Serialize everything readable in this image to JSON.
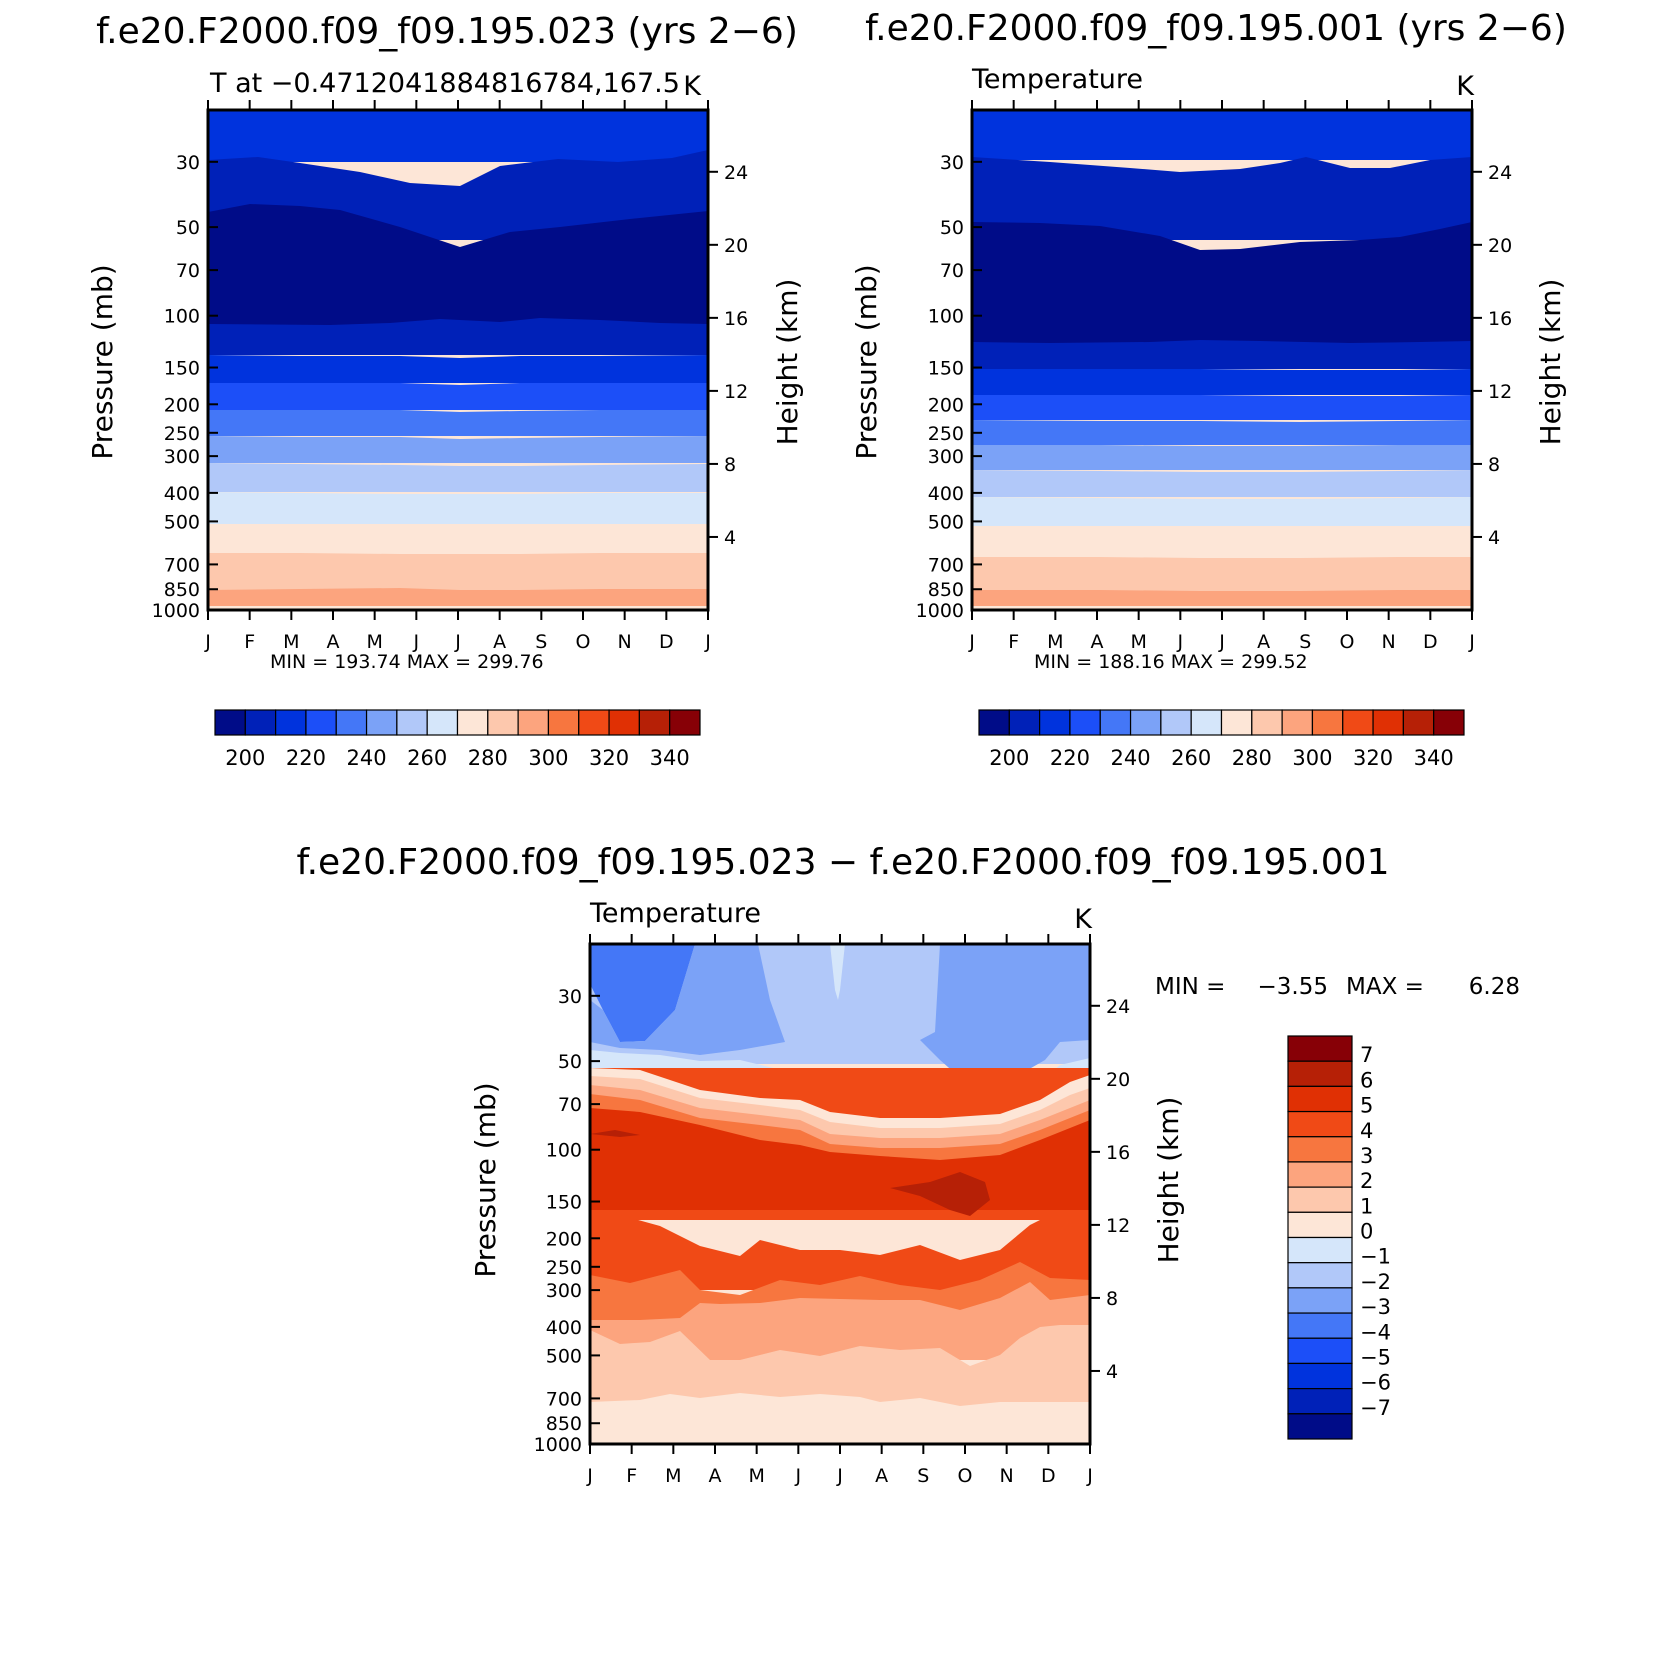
{
  "figure": {
    "panel_top_left": {
      "title": "f.e20.F2000.f09_f09.195.023 (yrs 2−6)",
      "left_string": "T at −0.4712041884816784,167.5",
      "right_string": "K",
      "min_max": "MIN =  193.74  MAX =  299.76"
    },
    "panel_top_right": {
      "title": "f.e20.F2000.f09_f09.195.001 (yrs 2−6)",
      "left_string": "Temperature",
      "right_string": "K",
      "min_max": "MIN =  188.16  MAX =  299.52"
    },
    "panel_bottom": {
      "title": "f.e20.F2000.f09_f09.195.023 − f.e20.F2000.f09_f09.195.001",
      "left_string": "Temperature",
      "right_string": "K",
      "min_label": "MIN =",
      "min_value": "−3.55",
      "max_label": "MAX =",
      "max_value": "6.28"
    },
    "axis_labels": {
      "left": "Pressure (mb)",
      "right": "Height (km)"
    }
  },
  "chart_data": [
    {
      "type": "heatmap",
      "subtype": "filled-contour pressure-month cross-section",
      "title": "f.e20.F2000.f09_f09.195.023 (yrs 2−6)",
      "subtitle": "T at −0.4712041884816784,167.5",
      "units": "K",
      "ylabel": "Pressure (mb)",
      "y2label": "Height (km)",
      "x_ticks": [
        "J",
        "F",
        "M",
        "A",
        "M",
        "J",
        "J",
        "A",
        "S",
        "O",
        "N",
        "D",
        "J"
      ],
      "pressure_ticks": [
        30,
        50,
        70,
        100,
        150,
        200,
        250,
        300,
        400,
        500,
        700,
        850,
        1000
      ],
      "pressure_range": [
        20,
        1000
      ],
      "pressure_scale": "log",
      "height_ticks_km": [
        24,
        20,
        16,
        12,
        8,
        4
      ],
      "contour_levels": [
        200,
        210,
        220,
        230,
        240,
        250,
        260,
        270,
        280,
        290,
        300,
        310,
        320,
        330,
        340
      ],
      "colorbar_labels": [
        "200",
        "220",
        "240",
        "260",
        "280",
        "300",
        "320",
        "340"
      ],
      "colorbar_colors": [
        "#000c88",
        "#0021b8",
        "#0033dd",
        "#1c4ff8",
        "#4477f7",
        "#7ba2f7",
        "#b1c8f9",
        "#d5e6fa",
        "#fde6d7",
        "#fdc8ad",
        "#fca47e",
        "#f7763f",
        "#f04a16",
        "#e03004",
        "#b62006",
        "#870006"
      ],
      "min": 193.74,
      "max": 299.76
    },
    {
      "type": "heatmap",
      "subtype": "filled-contour pressure-month cross-section",
      "title": "f.e20.F2000.f09_f09.195.001 (yrs 2−6)",
      "subtitle": "Temperature",
      "units": "K",
      "ylabel": "Pressure (mb)",
      "y2label": "Height (km)",
      "x_ticks": [
        "J",
        "F",
        "M",
        "A",
        "M",
        "J",
        "J",
        "A",
        "S",
        "O",
        "N",
        "D",
        "J"
      ],
      "pressure_ticks": [
        30,
        50,
        70,
        100,
        150,
        200,
        250,
        300,
        400,
        500,
        700,
        850,
        1000
      ],
      "pressure_range": [
        20,
        1000
      ],
      "pressure_scale": "log",
      "height_ticks_km": [
        24,
        20,
        16,
        12,
        8,
        4
      ],
      "contour_levels": [
        200,
        210,
        220,
        230,
        240,
        250,
        260,
        270,
        280,
        290,
        300,
        310,
        320,
        330,
        340
      ],
      "colorbar_labels": [
        "200",
        "220",
        "240",
        "260",
        "280",
        "300",
        "320",
        "340"
      ],
      "colorbar_colors": [
        "#000c88",
        "#0021b8",
        "#0033dd",
        "#1c4ff8",
        "#4477f7",
        "#7ba2f7",
        "#b1c8f9",
        "#d5e6fa",
        "#fde6d7",
        "#fdc8ad",
        "#fca47e",
        "#f7763f",
        "#f04a16",
        "#e03004",
        "#b62006",
        "#870006"
      ],
      "min": 188.16,
      "max": 299.52
    },
    {
      "type": "heatmap",
      "subtype": "filled-contour difference cross-section",
      "title": "f.e20.F2000.f09_f09.195.023 − f.e20.F2000.f09_f09.195.001",
      "subtitle": "Temperature",
      "units": "K",
      "ylabel": "Pressure (mb)",
      "y2label": "Height (km)",
      "x_ticks": [
        "J",
        "F",
        "M",
        "A",
        "M",
        "J",
        "J",
        "A",
        "S",
        "O",
        "N",
        "D",
        "J"
      ],
      "pressure_ticks": [
        30,
        50,
        70,
        100,
        150,
        200,
        250,
        300,
        400,
        500,
        700,
        850,
        1000
      ],
      "pressure_range": [
        20,
        1000
      ],
      "pressure_scale": "log",
      "height_ticks_km": [
        24,
        20,
        16,
        12,
        8,
        4
      ],
      "contour_levels": [
        -7,
        -6,
        -5,
        -4,
        -3,
        -2,
        -1,
        0,
        1,
        2,
        3,
        4,
        5,
        6,
        7
      ],
      "colorbar_labels": [
        "7",
        "6",
        "5",
        "4",
        "3",
        "2",
        "1",
        "0",
        "−1",
        "−2",
        "−3",
        "−4",
        "−5",
        "−6",
        "−7"
      ],
      "colorbar_colors": [
        "#870006",
        "#b62006",
        "#e03004",
        "#f04a16",
        "#f7763f",
        "#fca47e",
        "#fdc8ad",
        "#fde6d7",
        "#d5e6fa",
        "#b1c8f9",
        "#7ba2f7",
        "#4477f7",
        "#1c4ff8",
        "#0033dd",
        "#0021b8",
        "#000c88"
      ],
      "min": -3.55,
      "max": 6.28
    }
  ]
}
